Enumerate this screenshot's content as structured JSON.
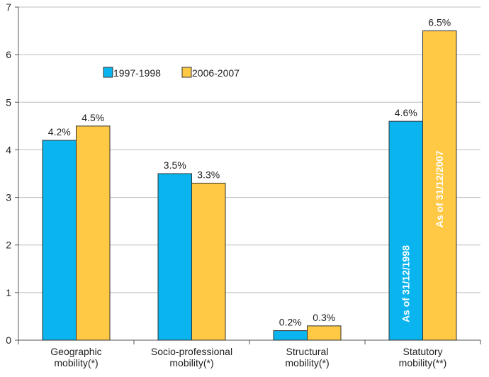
{
  "chart_data": {
    "type": "bar",
    "categories": [
      [
        "Geographic",
        "mobility(*)"
      ],
      [
        "Socio-professional",
        "mobility(*)"
      ],
      [
        "Structural",
        "mobility(*)"
      ],
      [
        "Statutory",
        "mobility(**)"
      ]
    ],
    "series": [
      {
        "name": "1997-1998",
        "color": "#0AB4EE",
        "values": [
          4.2,
          3.5,
          0.2,
          4.6
        ],
        "labels": [
          "4.2%",
          "3.5%",
          "0.2%",
          "4.6%"
        ]
      },
      {
        "name": "2006-2007",
        "color": "#FFC845",
        "values": [
          4.5,
          3.3,
          0.3,
          6.5
        ],
        "labels": [
          "4.5%",
          "3.3%",
          "0.3%",
          "6.5%"
        ]
      }
    ],
    "yticks": [
      "0",
      "1",
      "2",
      "3",
      "4",
      "5",
      "6",
      "7"
    ],
    "ylim": [
      0,
      7
    ],
    "grid": true,
    "legend_position": "top-left",
    "annotations": [
      {
        "category": 3,
        "series": 0,
        "text": "As of 31/12/1998"
      },
      {
        "category": 3,
        "series": 1,
        "text": "As of 31/12/2007"
      }
    ],
    "title": "",
    "xlabel": "",
    "ylabel": ""
  }
}
